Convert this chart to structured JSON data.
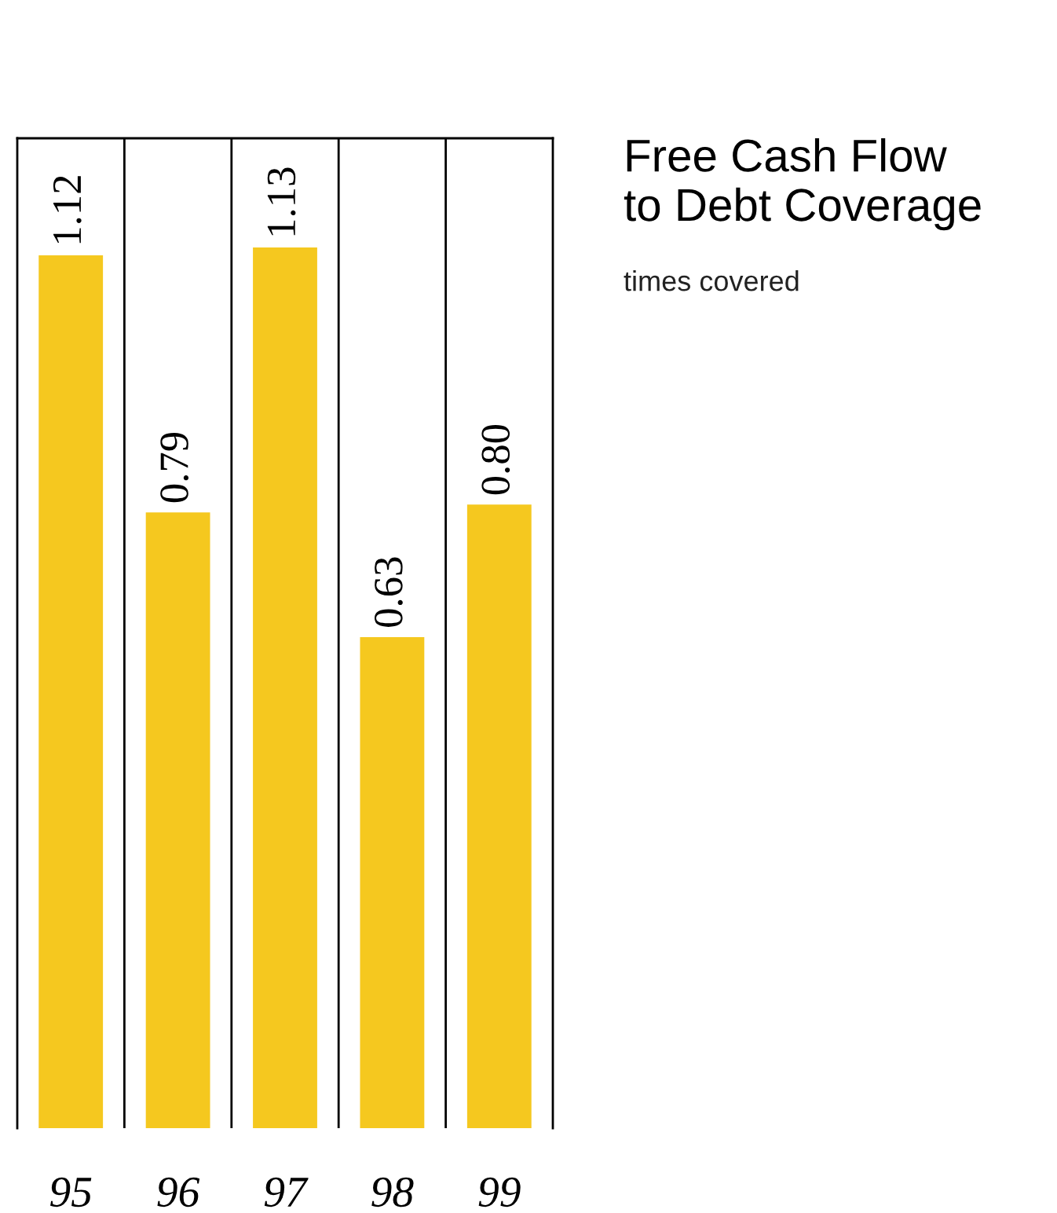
{
  "chart_data": {
    "type": "bar",
    "title": "Free Cash Flow\nto Debt Coverage",
    "subtitle": "times covered",
    "categories": [
      "95",
      "96",
      "97",
      "98",
      "99"
    ],
    "values": [
      1.12,
      0.79,
      1.13,
      0.63,
      0.8
    ],
    "value_labels": [
      "1.12",
      "0.79",
      "1.13",
      "0.63",
      "0.80"
    ],
    "color": "#f5c81f"
  }
}
